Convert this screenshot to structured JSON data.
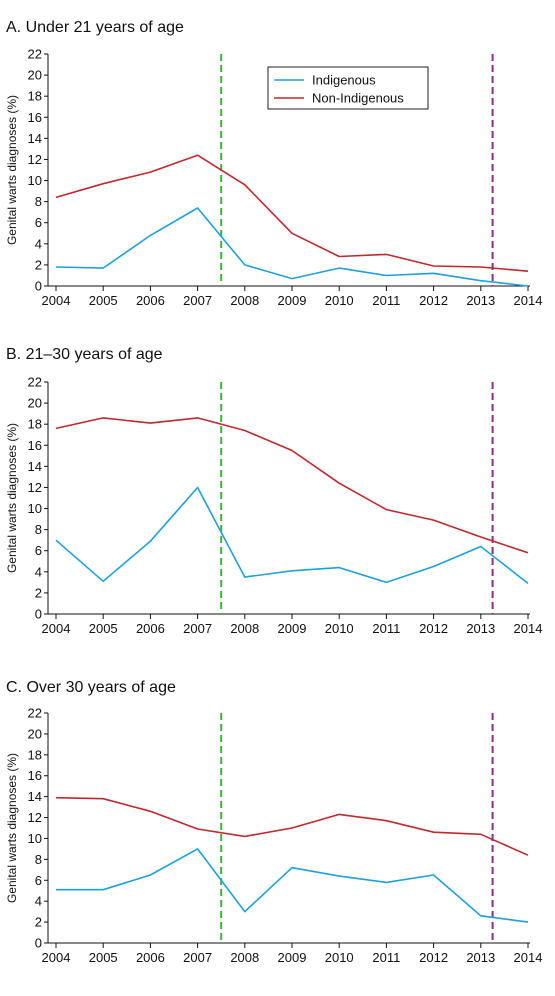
{
  "colors": {
    "indigenous": "#1ea0dc",
    "non_indigenous": "#c0282d",
    "green_marker": "#3cb43c",
    "purple_marker": "#8c2a96",
    "axis": "#111111"
  },
  "legend": {
    "items": [
      "Indigenous",
      "Non-Indigenous"
    ]
  },
  "chart_data": [
    {
      "type": "line",
      "title": "A. Under 21 years of age",
      "ylabel": "Genital warts diagnoses (%)",
      "xlabel": "",
      "x": [
        2004,
        2005,
        2006,
        2007,
        2008,
        2009,
        2010,
        2011,
        2012,
        2013,
        2014
      ],
      "xlim": [
        2004,
        2014
      ],
      "ylim": [
        0,
        22
      ],
      "yticks": [
        0,
        2,
        4,
        6,
        8,
        10,
        12,
        14,
        16,
        18,
        20,
        22
      ],
      "series": [
        {
          "name": "Indigenous",
          "values": [
            1.8,
            1.7,
            4.8,
            7.4,
            2.0,
            0.7,
            1.7,
            1.0,
            1.2,
            0.5,
            0.0
          ]
        },
        {
          "name": "Non-Indigenous",
          "values": [
            8.4,
            9.7,
            10.8,
            12.4,
            9.6,
            5.0,
            2.8,
            3.0,
            1.9,
            1.8,
            1.4
          ]
        }
      ],
      "vlines": [
        2007.5,
        2013.25
      ],
      "legend_position": "top-center",
      "grid": false
    },
    {
      "type": "line",
      "title": "B. 21–30 years of age",
      "ylabel": "Genital warts diagnoses (%)",
      "xlabel": "",
      "x": [
        2004,
        2005,
        2006,
        2007,
        2008,
        2009,
        2010,
        2011,
        2012,
        2013,
        2014
      ],
      "xlim": [
        2004,
        2014
      ],
      "ylim": [
        0,
        22
      ],
      "yticks": [
        0,
        2,
        4,
        6,
        8,
        10,
        12,
        14,
        16,
        18,
        20,
        22
      ],
      "series": [
        {
          "name": "Indigenous",
          "values": [
            7.0,
            3.1,
            6.9,
            12.0,
            3.5,
            4.1,
            4.4,
            3.0,
            4.5,
            6.4,
            2.9
          ]
        },
        {
          "name": "Non-Indigenous",
          "values": [
            17.6,
            18.6,
            18.1,
            18.6,
            17.4,
            15.5,
            12.4,
            9.9,
            8.9,
            7.3,
            5.8
          ]
        }
      ],
      "vlines": [
        2007.5,
        2013.25
      ],
      "grid": false
    },
    {
      "type": "line",
      "title": "C. Over 30 years of age",
      "ylabel": "Genital warts diagnoses (%)",
      "xlabel": "",
      "x": [
        2004,
        2005,
        2006,
        2007,
        2008,
        2009,
        2010,
        2011,
        2012,
        2013,
        2014
      ],
      "xlim": [
        2004,
        2014
      ],
      "ylim": [
        0,
        22
      ],
      "yticks": [
        0,
        2,
        4,
        6,
        8,
        10,
        12,
        14,
        16,
        18,
        20,
        22
      ],
      "series": [
        {
          "name": "Indigenous",
          "values": [
            5.1,
            5.1,
            6.5,
            9.0,
            3.0,
            7.2,
            6.4,
            5.8,
            6.5,
            2.6,
            2.0
          ]
        },
        {
          "name": "Non-Indigenous",
          "values": [
            13.9,
            13.8,
            12.6,
            10.9,
            10.2,
            11.0,
            12.3,
            11.7,
            10.6,
            10.4,
            8.4
          ]
        }
      ],
      "vlines": [
        2007.5,
        2013.25
      ],
      "grid": false
    }
  ]
}
